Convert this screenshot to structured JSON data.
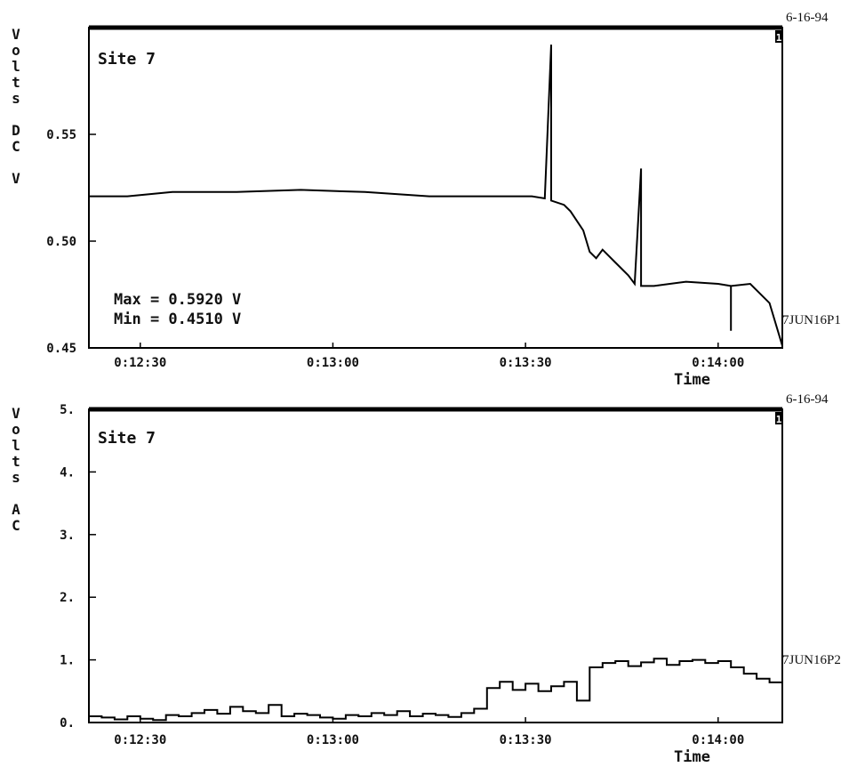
{
  "chart_data": [
    {
      "type": "line",
      "title": "Site 7",
      "date": "6-16-94",
      "channel": "1",
      "ylabel": "Volts DC V",
      "ylabel_lines": [
        "V",
        "o",
        "l",
        "t",
        "s",
        "",
        "D",
        "C",
        "",
        "V"
      ],
      "xlabel": "Time",
      "ylim": [
        0.45,
        0.6
      ],
      "yticks": [
        0.45,
        0.5,
        0.55
      ],
      "ytick_labels": [
        "0.45",
        "0.50",
        "0.55"
      ],
      "xlim": [
        "0:12:22",
        "0:14:10"
      ],
      "xticks": [
        "0:12:30",
        "0:13:00",
        "0:13:30",
        "0:14:00"
      ],
      "xtick_labels": [
        "0:12:30",
        "0:13:00",
        "0:13:30",
        "0:14:00"
      ],
      "max_label": "Max = 0.5920 V",
      "min_label": "Min = 0.4510 V",
      "file_label": "7JUN16P1",
      "series": [
        {
          "x": [
            "0:12:22",
            "0:12:28",
            "0:12:35",
            "0:12:45",
            "0:12:55",
            "0:13:05",
            "0:13:15",
            "0:13:25",
            "0:13:31",
            "0:13:33",
            "0:13:34",
            "0:13:34",
            "0:13:34",
            "0:13:36",
            "0:13:37",
            "0:13:39",
            "0:13:40",
            "0:13:41",
            "0:13:42",
            "0:13:44",
            "0:13:46",
            "0:13:47",
            "0:13:48",
            "0:13:48",
            "0:13:48",
            "0:13:49",
            "0:13:50",
            "0:13:55",
            "0:14:00",
            "0:14:02",
            "0:14:02",
            "0:14:02",
            "0:14:05",
            "0:14:08",
            "0:14:10"
          ],
          "values": [
            0.521,
            0.521,
            0.523,
            0.523,
            0.524,
            0.523,
            0.521,
            0.521,
            0.521,
            0.52,
            0.592,
            0.52,
            0.519,
            0.517,
            0.514,
            0.505,
            0.495,
            0.492,
            0.496,
            0.49,
            0.484,
            0.48,
            0.534,
            0.48,
            0.479,
            0.479,
            0.479,
            0.481,
            0.48,
            0.479,
            0.458,
            0.479,
            0.48,
            0.471,
            0.451
          ]
        }
      ]
    },
    {
      "type": "line",
      "title": "Site 7",
      "date": "6-16-94",
      "channel": "1",
      "ylabel": "Volts AC",
      "ylabel_lines": [
        "V",
        "o",
        "l",
        "t",
        "s",
        "",
        "A",
        "C"
      ],
      "xlabel": "Time",
      "ylim": [
        0,
        5
      ],
      "yticks": [
        0,
        1,
        2,
        3,
        4,
        5
      ],
      "ytick_labels": [
        "0.",
        "1.",
        "2.",
        "3.",
        "4.",
        "5."
      ],
      "xlim": [
        "0:12:22",
        "0:14:10"
      ],
      "xticks": [
        "0:12:30",
        "0:13:00",
        "0:13:30",
        "0:14:00"
      ],
      "xtick_labels": [
        "0:12:30",
        "0:13:00",
        "0:13:30",
        "0:14:00"
      ],
      "file_label": "7JUN16P2",
      "series": [
        {
          "x": [
            "0:12:22",
            "0:12:24",
            "0:12:26",
            "0:12:28",
            "0:12:30",
            "0:12:32",
            "0:12:34",
            "0:12:36",
            "0:12:38",
            "0:12:40",
            "0:12:42",
            "0:12:44",
            "0:12:46",
            "0:12:48",
            "0:12:50",
            "0:12:52",
            "0:12:54",
            "0:12:56",
            "0:12:58",
            "0:13:00",
            "0:13:02",
            "0:13:04",
            "0:13:06",
            "0:13:08",
            "0:13:10",
            "0:13:12",
            "0:13:14",
            "0:13:16",
            "0:13:18",
            "0:13:20",
            "0:13:22",
            "0:13:24",
            "0:13:26",
            "0:13:28",
            "0:13:30",
            "0:13:32",
            "0:13:34",
            "0:13:36",
            "0:13:38",
            "0:13:40",
            "0:13:42",
            "0:13:44",
            "0:13:46",
            "0:13:48",
            "0:13:50",
            "0:13:52",
            "0:13:54",
            "0:13:56",
            "0:13:58",
            "0:14:00",
            "0:14:02",
            "0:14:04",
            "0:14:06",
            "0:14:08",
            "0:14:10"
          ],
          "values": [
            0.1,
            0.08,
            0.05,
            0.1,
            0.06,
            0.04,
            0.12,
            0.1,
            0.15,
            0.2,
            0.14,
            0.25,
            0.18,
            0.15,
            0.28,
            0.1,
            0.14,
            0.12,
            0.08,
            0.06,
            0.12,
            0.1,
            0.15,
            0.12,
            0.18,
            0.1,
            0.14,
            0.12,
            0.09,
            0.15,
            0.22,
            0.55,
            0.65,
            0.52,
            0.62,
            0.5,
            0.58,
            0.65,
            0.35,
            0.88,
            0.95,
            0.98,
            0.9,
            0.96,
            1.02,
            0.92,
            0.98,
            1.0,
            0.95,
            0.98,
            0.88,
            0.78,
            0.7,
            0.64,
            0.72
          ]
        }
      ]
    }
  ]
}
